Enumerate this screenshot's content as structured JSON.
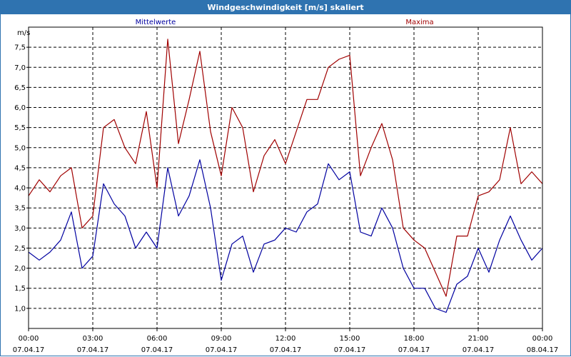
{
  "window": {
    "title": "Windgeschwindigkeit [m/s] skaliert"
  },
  "chart_data": {
    "type": "line",
    "title": "Windgeschwindigkeit [m/s] skaliert",
    "ylabel": "m/s",
    "ylim": [
      0.5,
      8.0
    ],
    "y_ticks": [
      "1,0",
      "1,5",
      "2,0",
      "2,5",
      "3,0",
      "3,5",
      "4,0",
      "4,5",
      "5,0",
      "5,5",
      "6,0",
      "6,5",
      "7,0",
      "7,5"
    ],
    "y_tick_values": [
      1.0,
      1.5,
      2.0,
      2.5,
      3.0,
      3.5,
      4.0,
      4.5,
      5.0,
      5.5,
      6.0,
      6.5,
      7.0,
      7.5
    ],
    "x_range_hours": [
      0,
      24
    ],
    "x_ticks": [
      {
        "h": 0,
        "time": "00:00",
        "date": "07.04.17"
      },
      {
        "h": 3,
        "time": "03:00",
        "date": "07.04.17"
      },
      {
        "h": 6,
        "time": "06:00",
        "date": "07.04.17"
      },
      {
        "h": 9,
        "time": "09:00",
        "date": "07.04.17"
      },
      {
        "h": 12,
        "time": "12:00",
        "date": "07.04.17"
      },
      {
        "h": 15,
        "time": "15:00",
        "date": "07.04.17"
      },
      {
        "h": 18,
        "time": "18:00",
        "date": "07.04.17"
      },
      {
        "h": 21,
        "time": "21:00",
        "date": "07.04.17"
      },
      {
        "h": 24,
        "time": "00:00",
        "date": "08.04.17"
      }
    ],
    "grid": true,
    "x": [
      0,
      0.5,
      1,
      1.5,
      2,
      2.5,
      3,
      3.5,
      4,
      4.5,
      5,
      5.5,
      6,
      6.5,
      7,
      7.5,
      8,
      8.5,
      9,
      9.5,
      10,
      10.5,
      11,
      11.5,
      12,
      12.5,
      13,
      13.5,
      14,
      14.5,
      15,
      15.5,
      16,
      16.5,
      17,
      17.5,
      18,
      18.5,
      19,
      19.5,
      20,
      20.5,
      21,
      21.5,
      22,
      22.5,
      23,
      23.5,
      24
    ],
    "series": [
      {
        "name": "Mittelwerte",
        "color": "#0000a0",
        "values": [
          2.4,
          2.2,
          2.4,
          2.7,
          3.4,
          2.0,
          2.3,
          4.1,
          3.6,
          3.3,
          2.5,
          2.9,
          2.5,
          4.5,
          3.3,
          3.8,
          4.7,
          3.5,
          1.7,
          2.6,
          2.8,
          1.9,
          2.6,
          2.7,
          3.0,
          2.9,
          3.4,
          3.6,
          4.6,
          4.2,
          4.4,
          2.9,
          2.8,
          3.5,
          3.0,
          2.0,
          1.5,
          1.5,
          1.0,
          0.9,
          1.6,
          1.8,
          2.5,
          1.9,
          2.7,
          3.3,
          2.7,
          2.2,
          2.5
        ]
      },
      {
        "name": "Maxima",
        "color": "#a00000",
        "values": [
          3.8,
          4.2,
          3.9,
          4.3,
          4.5,
          3.0,
          3.3,
          5.5,
          5.7,
          5.0,
          4.6,
          5.9,
          4.0,
          7.7,
          5.1,
          6.2,
          7.4,
          5.4,
          4.3,
          6.0,
          5.5,
          3.9,
          4.8,
          5.2,
          4.6,
          5.4,
          6.2,
          6.2,
          7.0,
          7.2,
          7.3,
          4.3,
          5.0,
          5.6,
          4.7,
          3.0,
          2.7,
          2.5,
          1.9,
          1.3,
          2.8,
          2.8,
          3.8,
          3.9,
          4.2,
          5.5,
          4.1,
          4.4,
          4.1
        ]
      }
    ]
  }
}
